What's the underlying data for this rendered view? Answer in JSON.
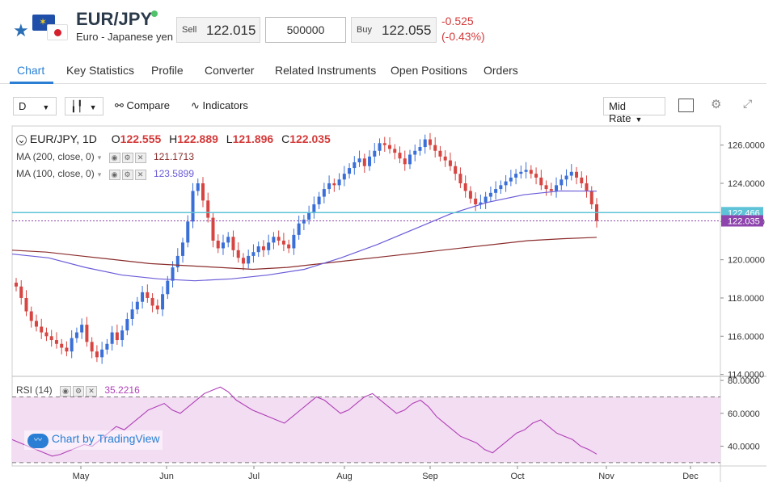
{
  "header": {
    "symbol": "EUR/JPY",
    "name": "Euro - Japanese yen",
    "sell_label": "Sell",
    "sell_price": "122.015",
    "amount_value": "500000",
    "buy_label": "Buy",
    "buy_price": "122.055",
    "change": "-0.525",
    "change_pct": "(-0.43%)"
  },
  "tabs": [
    "Chart",
    "Key Statistics",
    "Profile",
    "Converter",
    "Related Instruments",
    "Open Positions",
    "Orders"
  ],
  "toolbar": {
    "interval": "D",
    "compare_label": "Compare",
    "indicators_label": "Indicators",
    "rate_label": "Mid Rate"
  },
  "legend": {
    "title": "EUR/JPY, 1D",
    "o_label": "O",
    "o_value": "122.555",
    "h_label": "H",
    "h_value": "122.889",
    "l_label": "L",
    "l_value": "121.896",
    "c_label": "C",
    "c_value": "122.035",
    "ma200_label": "MA (200, close, 0)",
    "ma200_value": "121.1713",
    "ma100_label": "MA (100, close, 0)",
    "ma100_value": "123.5899",
    "rsi_label": "RSI (14)",
    "rsi_value": "35.2216",
    "watermark": "Chart by TradingView"
  },
  "colors": {
    "accent": "#2a7fd4",
    "up": "#3a6fd8",
    "down": "#d64541",
    "ma200": "#8b2c2c",
    "ma100": "#6a5cd8",
    "rsi": "#b040b8",
    "rsi_band": "#f3ddf2",
    "current_line": "#5ec3d6"
  },
  "chart_data": {
    "type": "candlestick",
    "price_axis": {
      "ticks": [
        126,
        124,
        122,
        120,
        118,
        116,
        114
      ],
      "tick_labels": [
        "126.0000",
        "124.0000",
        "122.0000",
        "120.0000",
        "118.0000",
        "116.0000",
        "114.0000"
      ],
      "ylim": [
        113.9,
        127.0
      ]
    },
    "x_labels": [
      "May",
      "Jun",
      "Jul",
      "Aug",
      "Sep",
      "Oct",
      "Nov",
      "Dec"
    ],
    "price_markers": [
      {
        "label": "122.466",
        "value": 122.466,
        "color": "#5ec3d6"
      },
      {
        "label": "122.035",
        "value": 122.035,
        "color": "#8e44ad"
      }
    ],
    "closes": [
      118.6,
      118.0,
      117.3,
      116.8,
      116.5,
      116.2,
      116.0,
      115.8,
      115.6,
      115.4,
      115.2,
      115.9,
      116.2,
      116.6,
      115.7,
      115.2,
      114.9,
      115.3,
      115.6,
      116.2,
      115.8,
      116.3,
      116.9,
      117.4,
      117.8,
      118.3,
      118.0,
      117.6,
      117.4,
      118.2,
      118.9,
      119.6,
      120.2,
      120.9,
      122.0,
      123.6,
      124.0,
      123.1,
      122.2,
      121.0,
      120.6,
      120.9,
      121.2,
      120.5,
      120.1,
      119.8,
      120.2,
      120.4,
      120.7,
      120.5,
      120.9,
      121.2,
      121.0,
      120.8,
      120.6,
      121.3,
      121.9,
      122.1,
      122.5,
      122.9,
      123.3,
      123.7,
      124.0,
      123.9,
      124.2,
      124.5,
      124.8,
      125.1,
      125.3,
      124.9,
      125.4,
      125.7,
      126.1,
      126.0,
      125.8,
      125.6,
      125.3,
      125.0,
      125.5,
      125.7,
      125.9,
      126.3,
      126.0,
      125.7,
      125.4,
      125.2,
      124.9,
      124.5,
      124.0,
      123.6,
      123.2,
      122.9,
      123.0,
      123.3,
      123.5,
      123.7,
      123.9,
      124.1,
      124.3,
      124.5,
      124.6,
      124.7,
      124.5,
      124.3,
      123.9,
      123.7,
      123.6,
      123.9,
      124.2,
      124.4,
      124.6,
      124.3,
      124.0,
      123.6,
      122.9,
      122.035
    ],
    "ma200": [
      120.5,
      120.4,
      120.2,
      120.0,
      119.8,
      119.7,
      119.6,
      119.5,
      119.6,
      119.8,
      120.0,
      120.2,
      120.4,
      120.6,
      120.8,
      121.0,
      121.1,
      121.17
    ],
    "ma100": [
      120.3,
      120.1,
      119.6,
      119.2,
      119.0,
      118.9,
      119.0,
      119.2,
      119.5,
      120.1,
      120.8,
      121.6,
      122.4,
      123.0,
      123.4,
      123.6,
      123.59
    ],
    "rsi_axis": {
      "ticks": [
        80,
        60,
        40
      ],
      "tick_labels": [
        "80.0000",
        "60.0000",
        "40.0000"
      ],
      "ylim": [
        28,
        82
      ],
      "bands": [
        70,
        30
      ]
    },
    "rsi": [
      44,
      42,
      40,
      38,
      36,
      34,
      35,
      37,
      39,
      41,
      40,
      44,
      48,
      52,
      50,
      54,
      58,
      62,
      64,
      66,
      62,
      60,
      64,
      68,
      72,
      74,
      76,
      73,
      68,
      65,
      62,
      60,
      58,
      56,
      54,
      58,
      62,
      66,
      70,
      68,
      64,
      60,
      62,
      66,
      70,
      72,
      68,
      64,
      60,
      62,
      66,
      68,
      64,
      58,
      54,
      50,
      46,
      44,
      42,
      38,
      36,
      40,
      44,
      48,
      50,
      54,
      56,
      52,
      48,
      46,
      44,
      40,
      38,
      35.22
    ]
  }
}
